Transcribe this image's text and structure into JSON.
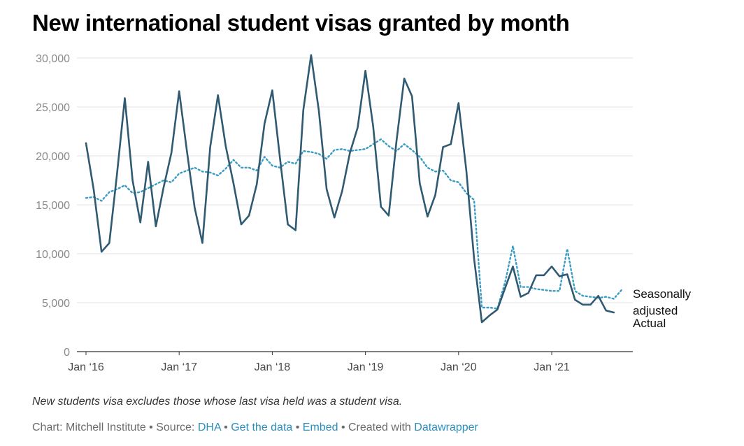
{
  "title": "New international student visas granted by month",
  "footnote": "New students visa excludes those whose last visa held was a student visa.",
  "credits": {
    "chart_by": "Chart: Mitchell Institute",
    "sep": " • ",
    "source_prefix": "Source: ",
    "source_link": "DHA",
    "get_data": "Get the data",
    "embed": "Embed",
    "created_with": "Created with ",
    "datawrapper": "Datawrapper"
  },
  "colors": {
    "actual": "#2f5a72",
    "seasonal": "#3a9cc4",
    "grid": "#e3e3e3",
    "axis": "#333333",
    "tick_text": "#8a8a8a",
    "link": "#2b8fbd"
  },
  "chart_data": {
    "type": "line",
    "title": "New international student visas granted by month",
    "x_start": "2016-01",
    "x_end": "2021-07",
    "x_ticks": [
      {
        "x": "2016-01",
        "label": "Jan ‘16"
      },
      {
        "x": "2017-01",
        "label": "Jan ‘17"
      },
      {
        "x": "2018-01",
        "label": "Jan ‘18"
      },
      {
        "x": "2019-01",
        "label": "Jan ‘19"
      },
      {
        "x": "2020-01",
        "label": "Jan ‘20"
      },
      {
        "x": "2021-01",
        "label": "Jan ‘21"
      }
    ],
    "y_ticks": [
      {
        "value": 0,
        "label": "0"
      },
      {
        "value": 5000,
        "label": "5,000"
      },
      {
        "value": 10000,
        "label": "10,000"
      },
      {
        "value": 15000,
        "label": "15,000"
      },
      {
        "value": 20000,
        "label": "20,000"
      },
      {
        "value": 25000,
        "label": "25,000"
      },
      {
        "value": 30000,
        "label": "30,000"
      }
    ],
    "ylim": [
      0,
      30000
    ],
    "grid": true,
    "legend": "direct labels at right end of lines",
    "series": [
      {
        "name": "Actual",
        "style": "solid",
        "points": [
          [
            "2016-01",
            21300
          ],
          [
            "2016-02",
            16500
          ],
          [
            "2016-03",
            10200
          ],
          [
            "2016-04",
            11100
          ],
          [
            "2016-05",
            18200
          ],
          [
            "2016-06",
            25900
          ],
          [
            "2016-07",
            17500
          ],
          [
            "2016-08",
            13200
          ],
          [
            "2016-09",
            19400
          ],
          [
            "2016-10",
            12800
          ],
          [
            "2016-11",
            16800
          ],
          [
            "2016-12",
            20300
          ],
          [
            "2017-01",
            26600
          ],
          [
            "2017-02",
            20500
          ],
          [
            "2017-03",
            14700
          ],
          [
            "2017-04",
            11100
          ],
          [
            "2017-05",
            20900
          ],
          [
            "2017-06",
            26200
          ],
          [
            "2017-07",
            21000
          ],
          [
            "2017-08",
            17200
          ],
          [
            "2017-09",
            13000
          ],
          [
            "2017-10",
            13900
          ],
          [
            "2017-11",
            17100
          ],
          [
            "2017-12",
            23300
          ],
          [
            "2018-01",
            26700
          ],
          [
            "2018-02",
            19700
          ],
          [
            "2018-03",
            13000
          ],
          [
            "2018-04",
            12400
          ],
          [
            "2018-05",
            24700
          ],
          [
            "2018-06",
            30300
          ],
          [
            "2018-07",
            24600
          ],
          [
            "2018-08",
            16600
          ],
          [
            "2018-09",
            13700
          ],
          [
            "2018-10",
            16400
          ],
          [
            "2018-11",
            20300
          ],
          [
            "2018-12",
            22900
          ],
          [
            "2019-01",
            28700
          ],
          [
            "2019-02",
            23000
          ],
          [
            "2019-03",
            14800
          ],
          [
            "2019-04",
            13900
          ],
          [
            "2019-05",
            21500
          ],
          [
            "2019-06",
            27900
          ],
          [
            "2019-07",
            26100
          ],
          [
            "2019-08",
            17200
          ],
          [
            "2019-09",
            13800
          ],
          [
            "2019-10",
            16000
          ],
          [
            "2019-11",
            20900
          ],
          [
            "2019-12",
            21200
          ],
          [
            "2020-01",
            25400
          ],
          [
            "2020-02",
            18500
          ],
          [
            "2020-03",
            9500
          ],
          [
            "2020-04",
            3000
          ],
          [
            "2020-05",
            3700
          ],
          [
            "2020-06",
            4300
          ],
          [
            "2020-07",
            6500
          ],
          [
            "2020-08",
            8700
          ],
          [
            "2020-09",
            5600
          ],
          [
            "2020-10",
            6000
          ],
          [
            "2020-11",
            7800
          ],
          [
            "2020-12",
            7800
          ],
          [
            "2021-01",
            8700
          ],
          [
            "2021-02",
            7700
          ],
          [
            "2021-03",
            7900
          ],
          [
            "2021-04",
            5300
          ],
          [
            "2021-05",
            4800
          ],
          [
            "2021-06",
            4800
          ],
          [
            "2021-07",
            5700
          ],
          [
            "2021-08",
            4200
          ],
          [
            "2021-09",
            4000
          ]
        ]
      },
      {
        "name": "Seasonally adjusted",
        "style": "dotted",
        "points": [
          [
            "2016-01",
            15700
          ],
          [
            "2016-02",
            15800
          ],
          [
            "2016-03",
            15400
          ],
          [
            "2016-04",
            16300
          ],
          [
            "2016-05",
            16600
          ],
          [
            "2016-06",
            17000
          ],
          [
            "2016-07",
            16200
          ],
          [
            "2016-08",
            16300
          ],
          [
            "2016-09",
            16700
          ],
          [
            "2016-10",
            17100
          ],
          [
            "2016-11",
            17500
          ],
          [
            "2016-12",
            17300
          ],
          [
            "2017-01",
            18200
          ],
          [
            "2017-02",
            18500
          ],
          [
            "2017-03",
            18800
          ],
          [
            "2017-04",
            18400
          ],
          [
            "2017-05",
            18300
          ],
          [
            "2017-06",
            18000
          ],
          [
            "2017-07",
            18700
          ],
          [
            "2017-08",
            19600
          ],
          [
            "2017-09",
            18800
          ],
          [
            "2017-10",
            18800
          ],
          [
            "2017-11",
            18500
          ],
          [
            "2017-12",
            19900
          ],
          [
            "2018-01",
            19000
          ],
          [
            "2018-02",
            18800
          ],
          [
            "2018-03",
            19400
          ],
          [
            "2018-04",
            19200
          ],
          [
            "2018-05",
            20500
          ],
          [
            "2018-06",
            20400
          ],
          [
            "2018-07",
            20200
          ],
          [
            "2018-08",
            19700
          ],
          [
            "2018-09",
            20600
          ],
          [
            "2018-10",
            20700
          ],
          [
            "2018-11",
            20500
          ],
          [
            "2018-12",
            20600
          ],
          [
            "2019-01",
            20700
          ],
          [
            "2019-02",
            21200
          ],
          [
            "2019-03",
            21700
          ],
          [
            "2019-04",
            21000
          ],
          [
            "2019-05",
            20500
          ],
          [
            "2019-06",
            21200
          ],
          [
            "2019-07",
            20600
          ],
          [
            "2019-08",
            19900
          ],
          [
            "2019-09",
            18800
          ],
          [
            "2019-10",
            18400
          ],
          [
            "2019-11",
            18500
          ],
          [
            "2019-12",
            17500
          ],
          [
            "2020-01",
            17300
          ],
          [
            "2020-02",
            16200
          ],
          [
            "2020-03",
            15500
          ],
          [
            "2020-04",
            4500
          ],
          [
            "2020-05",
            4500
          ],
          [
            "2020-06",
            4400
          ],
          [
            "2020-07",
            7100
          ],
          [
            "2020-08",
            10800
          ],
          [
            "2020-09",
            6600
          ],
          [
            "2020-10",
            6600
          ],
          [
            "2020-11",
            6400
          ],
          [
            "2020-12",
            6300
          ],
          [
            "2021-01",
            6200
          ],
          [
            "2021-02",
            6200
          ],
          [
            "2021-03",
            10500
          ],
          [
            "2021-04",
            6200
          ],
          [
            "2021-05",
            5700
          ],
          [
            "2021-06",
            5600
          ],
          [
            "2021-07",
            5500
          ],
          [
            "2021-08",
            5600
          ],
          [
            "2021-09",
            5400
          ],
          [
            "2021-10",
            6300
          ]
        ]
      }
    ]
  }
}
